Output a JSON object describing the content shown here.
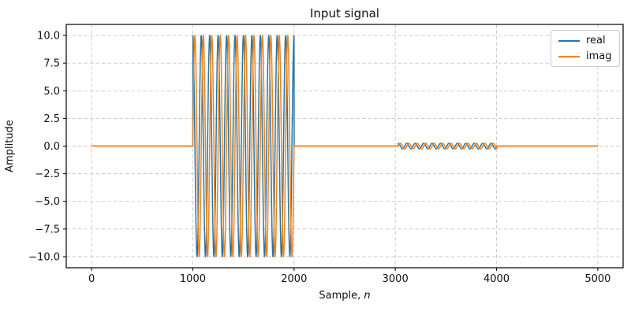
{
  "figure": {
    "background": "#ffffff"
  },
  "chart_data": {
    "type": "line",
    "title": "Input signal",
    "xlabel_prefix": "Sample, ",
    "xlabel_var": "n",
    "ylabel": "Amplitude",
    "xlim": [
      -250,
      5250
    ],
    "ylim": [
      -11,
      11
    ],
    "xticks": [
      0,
      1000,
      2000,
      3000,
      4000,
      5000
    ],
    "xtick_labels": [
      "0",
      "1000",
      "2000",
      "3000",
      "4000",
      "5000"
    ],
    "yticks": [
      10.0,
      7.5,
      5.0,
      2.5,
      0.0,
      -2.5,
      -5.0,
      -7.5,
      -10.0
    ],
    "ytick_labels": [
      "10.0",
      "7.5",
      "5.0",
      "2.5",
      "0.0",
      "−2.5",
      "−5.0",
      "−7.5",
      "−10.0"
    ],
    "grid": true,
    "grid_color": "#c8c8c8",
    "axis_color": "#000000",
    "n_range": [
      0,
      5000
    ],
    "legend": {
      "position": "upper right",
      "entries": [
        {
          "label": "real",
          "color": "#1f77b4"
        },
        {
          "label": "imag",
          "color": "#ff7f0e"
        }
      ]
    },
    "series": [
      {
        "name": "real",
        "color": "#1f77b4",
        "waveform": "cos",
        "line_width": 1.5,
        "segments": [
          {
            "n_start": 0,
            "n_end": 1000,
            "kind": "zero"
          },
          {
            "n_start": 1000,
            "n_end": 2000,
            "kind": "tone",
            "amplitude": 10,
            "cycles_per_1000": 12
          },
          {
            "n_start": 2000,
            "n_end": 3030,
            "kind": "zero"
          },
          {
            "n_start": 3030,
            "n_end": 4003,
            "kind": "tone",
            "amplitude": 0.25,
            "cycles_per_1000": 12
          },
          {
            "n_start": 4003,
            "n_end": 5000,
            "kind": "zero"
          }
        ]
      },
      {
        "name": "imag",
        "color": "#ff7f0e",
        "waveform": "sin",
        "line_width": 1.5,
        "segments": [
          {
            "n_start": 0,
            "n_end": 1000,
            "kind": "zero"
          },
          {
            "n_start": 1000,
            "n_end": 2000,
            "kind": "tone",
            "amplitude": 10,
            "cycles_per_1000": 12
          },
          {
            "n_start": 2000,
            "n_end": 3030,
            "kind": "zero"
          },
          {
            "n_start": 3030,
            "n_end": 4003,
            "kind": "tone",
            "amplitude": 0.25,
            "cycles_per_1000": 12
          },
          {
            "n_start": 4003,
            "n_end": 5000,
            "kind": "zero"
          }
        ]
      }
    ]
  }
}
